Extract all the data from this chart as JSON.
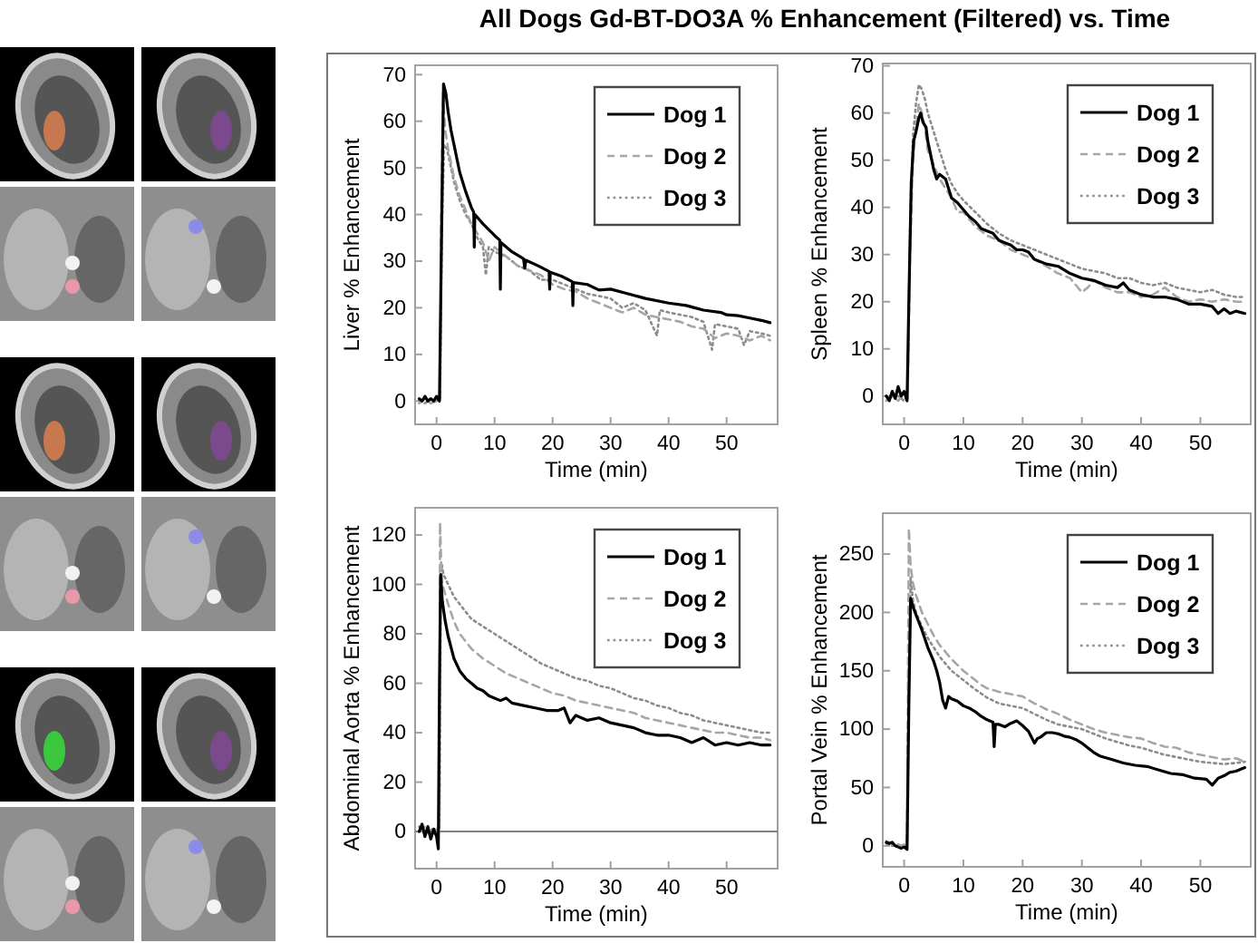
{
  "chart_data": [
    {
      "type": "line",
      "title": "All Dogs Gd-BT-DO3A % Enhancement (Filtered) vs. Time",
      "xlabel": "Time (min)",
      "ylabel": "Liver % Enhancement",
      "xlim": [
        -3.7,
        58.8
      ],
      "xticks": [
        0,
        10,
        20,
        30,
        40,
        50
      ],
      "ylim": [
        -5,
        72
      ],
      "yticks": [
        0,
        10,
        20,
        30,
        40,
        50,
        60,
        70
      ],
      "legend": "top right",
      "series": [
        {
          "name": "Dog 1",
          "color": "#000000",
          "line_style": "solid",
          "x": [
            -3,
            -2.5,
            -2,
            -1.5,
            -1,
            -0.5,
            0,
            0.5,
            0.8,
            1.2,
            1.6,
            2,
            2.5,
            3,
            4,
            5,
            6,
            6.4,
            6.5,
            6.6,
            8,
            10,
            10.9,
            11,
            11.1,
            13,
            15,
            15.2,
            15.4,
            17.5,
            19.4,
            19.5,
            19.6,
            21.5,
            23.4,
            23.5,
            23.6,
            26,
            28,
            30,
            33,
            36,
            40,
            43,
            46,
            49,
            50,
            52,
            54,
            56,
            57.5
          ],
          "values": [
            0.5,
            0,
            1,
            0,
            0.5,
            0,
            1,
            0,
            30,
            68,
            66,
            62,
            58,
            55,
            49,
            45,
            41.5,
            40.5,
            33,
            40,
            38,
            35.5,
            34.5,
            24,
            34,
            32,
            30.5,
            28.5,
            30.2,
            29,
            27.8,
            24,
            27.6,
            26.8,
            25.6,
            20.5,
            25.4,
            25,
            23.8,
            24,
            23,
            22,
            21,
            20.5,
            19.5,
            19,
            18.5,
            18.3,
            17.8,
            17.3,
            16.8
          ]
        },
        {
          "name": "Dog 2",
          "color": "#a6a6a6",
          "line_style": "dashed",
          "x": [
            -3,
            -2,
            -1,
            0,
            0.6,
            0.8,
            1.1,
            1.5,
            2,
            3,
            4,
            5,
            6,
            7,
            8,
            9,
            10,
            12,
            14,
            16,
            18,
            20,
            22,
            24,
            26,
            28,
            30,
            32,
            34,
            36,
            38,
            40,
            42,
            44,
            46,
            48,
            50,
            52,
            54,
            56,
            57.5
          ],
          "values": [
            -0.5,
            0.5,
            -0.5,
            0,
            1,
            40,
            66,
            58,
            54,
            48,
            44,
            41,
            38,
            36,
            34,
            30,
            33,
            31,
            29,
            28,
            27,
            25,
            24,
            23.5,
            22,
            21,
            20,
            19,
            20,
            18.5,
            18,
            17.5,
            17,
            16,
            15.5,
            13.5,
            14.5,
            14,
            13,
            14,
            13
          ]
        },
        {
          "name": "Dog 3",
          "color": "#8c8c8c",
          "line_style": "dotted",
          "x": [
            -3,
            -2,
            -1,
            0,
            0.6,
            0.9,
            1.3,
            1.8,
            2.5,
            3,
            4,
            5,
            6,
            7,
            8,
            8.5,
            9,
            10,
            12,
            14,
            16,
            18,
            20,
            22,
            24,
            26,
            28,
            30,
            32,
            34,
            36,
            38,
            38.5,
            40,
            42,
            44,
            46,
            47.5,
            48,
            50,
            52,
            53,
            54,
            56,
            57.5
          ],
          "values": [
            0,
            -0.5,
            0.5,
            0,
            0.5,
            35,
            55,
            54,
            50,
            47,
            43,
            40,
            38,
            35,
            33,
            27,
            33,
            32,
            31,
            29,
            28,
            26,
            26,
            25,
            24,
            23,
            22.5,
            22,
            20,
            21,
            19.5,
            14,
            19.5,
            19,
            18.5,
            18,
            17,
            11,
            16.5,
            16,
            15.5,
            12,
            15,
            14.5,
            14
          ]
        }
      ]
    },
    {
      "type": "line",
      "xlabel": "Time (min)",
      "ylabel": "Spleen % Enhancement",
      "xlim": [
        -3.6,
        58.5
      ],
      "xticks": [
        0,
        10,
        20,
        30,
        40,
        50
      ],
      "ylim": [
        -6,
        70.5
      ],
      "yticks": [
        0,
        10,
        20,
        30,
        40,
        50,
        60,
        70
      ],
      "legend": "top right",
      "series": [
        {
          "name": "Dog 1",
          "color": "#000000",
          "line_style": "solid",
          "x": [
            -3,
            -2.5,
            -2,
            -1.5,
            -1,
            -0.5,
            0,
            0.5,
            0.8,
            1.2,
            1.6,
            2,
            2.5,
            2.8,
            3.2,
            3.7,
            4,
            4.5,
            5,
            5.5,
            6,
            7,
            7.5,
            8,
            9,
            10,
            11,
            12,
            13,
            14,
            15,
            16,
            17,
            18,
            19,
            20,
            21,
            22,
            24,
            26,
            28,
            30,
            32,
            34,
            36,
            37,
            38,
            40,
            42,
            44,
            46,
            48,
            50,
            52,
            53,
            54,
            55,
            56,
            57.5
          ],
          "values": [
            0,
            -1,
            1,
            -0.5,
            2,
            0,
            1,
            -1,
            20,
            45,
            54,
            56,
            59,
            60,
            58,
            57,
            54,
            51,
            48,
            46,
            47,
            46,
            44,
            42,
            41,
            39.5,
            38,
            37,
            35.5,
            35,
            34.5,
            33,
            32.5,
            32,
            31,
            31,
            30.5,
            29,
            28,
            27.5,
            26,
            25,
            24.5,
            23.5,
            23,
            24,
            22.5,
            21.5,
            21,
            21,
            20.5,
            19.5,
            19.5,
            19,
            17.5,
            18.5,
            17.5,
            18,
            17.5
          ]
        },
        {
          "name": "Dog 2",
          "color": "#a6a6a6",
          "line_style": "dashed",
          "x": [
            -3,
            -2,
            -1,
            0,
            0.6,
            1,
            1.5,
            2,
            2.5,
            3,
            3.5,
            4,
            5,
            6,
            7,
            8,
            9,
            10,
            12,
            14,
            16,
            18,
            20,
            22,
            24,
            26,
            28,
            30,
            31,
            32,
            34,
            36,
            38,
            40,
            42,
            44,
            46,
            48,
            50,
            52,
            54,
            56,
            57.5
          ],
          "values": [
            -1,
            0,
            -1,
            0.5,
            -0.5,
            30,
            50,
            57,
            62,
            60,
            57,
            52,
            49,
            46,
            44,
            42,
            39,
            39,
            36,
            34,
            33,
            31,
            30,
            29,
            27.5,
            26,
            25,
            22,
            23,
            24.5,
            23,
            22,
            22,
            21,
            21.5,
            23,
            21,
            20,
            20.5,
            20,
            20.5,
            20,
            20
          ]
        },
        {
          "name": "Dog 3",
          "color": "#8c8c8c",
          "line_style": "dotted",
          "x": [
            -3,
            -2,
            -1,
            0,
            0.6,
            1,
            1.5,
            2,
            2.5,
            3,
            3.5,
            4,
            5,
            6,
            7,
            8,
            9,
            10,
            12,
            14,
            16,
            18,
            20,
            22,
            24,
            26,
            28,
            30,
            32,
            34,
            36,
            38,
            40,
            42,
            44,
            46,
            48,
            50,
            52,
            54,
            56,
            57.5
          ],
          "values": [
            -1,
            0,
            0,
            -1,
            0,
            35,
            55,
            62,
            66,
            65,
            63,
            60,
            56,
            52,
            48,
            45,
            43,
            41.5,
            39,
            36.5,
            34.5,
            33,
            32,
            31,
            30,
            29,
            28,
            27,
            26.5,
            26,
            25,
            25,
            24,
            23.5,
            24,
            23,
            22.5,
            22,
            22.5,
            21.5,
            21,
            21
          ]
        }
      ]
    },
    {
      "type": "line",
      "xlabel": "Time (min)",
      "ylabel": "Abdominal Aorta % Enhancement",
      "xlim": [
        -3.7,
        58.8
      ],
      "xticks": [
        0,
        10,
        20,
        30,
        40,
        50
      ],
      "ylim": [
        -15,
        131
      ],
      "yticks": [
        0,
        20,
        40,
        60,
        80,
        100,
        120
      ],
      "legend": "top right",
      "ref_lines": [
        {
          "axis": "y",
          "value": 0,
          "color": "#808080"
        }
      ],
      "series": [
        {
          "name": "Dog 1",
          "color": "#000000",
          "line_style": "solid",
          "x": [
            -3,
            -2.5,
            -2,
            -1.5,
            -1,
            -0.5,
            0,
            0.3,
            0.5,
            0.7,
            1,
            1.5,
            2,
            3,
            4,
            5,
            6,
            7,
            8,
            9,
            10,
            11,
            12,
            13,
            15,
            17,
            19,
            21,
            22,
            23,
            24,
            26,
            28,
            30,
            32,
            34,
            36,
            38,
            40,
            42,
            44,
            46,
            48,
            50,
            52,
            54,
            56,
            57.5
          ],
          "values": [
            0,
            3,
            -2,
            2,
            -3,
            1,
            -2,
            -7,
            60,
            104,
            93,
            85,
            79,
            70,
            65,
            62,
            60,
            58,
            57,
            55,
            54,
            53,
            54,
            52,
            51,
            50,
            49,
            49,
            50,
            44,
            47,
            45,
            46,
            44,
            43,
            42,
            40,
            39,
            39,
            38,
            36,
            38,
            35,
            36,
            35,
            36,
            35,
            35
          ]
        },
        {
          "name": "Dog 2",
          "color": "#a6a6a6",
          "line_style": "dashed",
          "x": [
            -3,
            -2,
            -1,
            0,
            0.5,
            0.6,
            0.8,
            1,
            2,
            3,
            4,
            5,
            6,
            8,
            10,
            12,
            14,
            16,
            18,
            20,
            22,
            24,
            26,
            28,
            30,
            32,
            34,
            36,
            38,
            40,
            42,
            44,
            46,
            48,
            50,
            52,
            54,
            56,
            57.5
          ],
          "values": [
            0,
            2,
            -2,
            1,
            0,
            125,
            108,
            100,
            92,
            85,
            80,
            77,
            74,
            70,
            67,
            64,
            62,
            60,
            58,
            56,
            55,
            53,
            52,
            51,
            50,
            49,
            48,
            46,
            45,
            44,
            43,
            42,
            41,
            40,
            40,
            39,
            38,
            38,
            37
          ]
        },
        {
          "name": "Dog 3",
          "color": "#8c8c8c",
          "line_style": "dotted",
          "x": [
            -3,
            -2,
            -1,
            0,
            0.5,
            0.7,
            0.9,
            1.2,
            2,
            3,
            4,
            5,
            6,
            8,
            10,
            12,
            14,
            16,
            18,
            20,
            22,
            24,
            26,
            28,
            30,
            32,
            34,
            36,
            38,
            40,
            42,
            44,
            46,
            48,
            50,
            52,
            54,
            56,
            57.5
          ],
          "values": [
            2,
            -1,
            1,
            0,
            0,
            90,
            108,
            104,
            100,
            95,
            92,
            89,
            86,
            83,
            80,
            77,
            74,
            71,
            68,
            66,
            64,
            62,
            61,
            59,
            58,
            56,
            54,
            53,
            51,
            50,
            48,
            47,
            45,
            44,
            43,
            42,
            41,
            40,
            40
          ]
        }
      ]
    },
    {
      "type": "line",
      "xlabel": "Time (min)",
      "ylabel": "Portal Vein % Enhancement",
      "xlim": [
        -3.6,
        58.5
      ],
      "xticks": [
        0,
        10,
        20,
        30,
        40,
        50
      ],
      "ylim": [
        -18,
        285
      ],
      "yticks": [
        0,
        50,
        100,
        150,
        200,
        250
      ],
      "legend": "top right",
      "series": [
        {
          "name": "Dog 1",
          "color": "#000000",
          "line_style": "solid",
          "x": [
            -3,
            -2.5,
            -2,
            -1.5,
            -1,
            -0.5,
            0,
            0.5,
            0.8,
            1.1,
            1.5,
            2,
            3,
            4,
            5,
            5.5,
            6,
            6.5,
            7,
            7.5,
            8,
            9,
            10,
            11,
            12,
            13,
            14,
            15,
            15.2,
            15.4,
            16,
            17,
            18,
            19,
            20,
            21,
            22,
            22.5,
            23,
            24,
            25,
            26,
            27,
            28,
            29,
            30,
            31,
            32,
            33,
            35,
            37,
            39,
            41,
            43,
            45,
            47,
            49,
            51,
            52,
            53,
            54,
            55,
            56,
            57.5
          ],
          "values": [
            3,
            2,
            3,
            0,
            -1,
            -2,
            -1,
            -3,
            120,
            212,
            205,
            198,
            185,
            170,
            158,
            150,
            140,
            125,
            118,
            128,
            126,
            124,
            120,
            118,
            115,
            111,
            108,
            106,
            85,
            104,
            104,
            102,
            105,
            107,
            103,
            98,
            88,
            92,
            93,
            97,
            97,
            96,
            94,
            93,
            91,
            88,
            84,
            80,
            77,
            74,
            71,
            69,
            68,
            65,
            62,
            61,
            58,
            57,
            52,
            58,
            60,
            63,
            64,
            67
          ]
        },
        {
          "name": "Dog 2",
          "color": "#a6a6a6",
          "line_style": "dashed",
          "x": [
            -3,
            -2,
            -1,
            0,
            0.5,
            0.8,
            1.1,
            1.5,
            2,
            3,
            4,
            5,
            6,
            7,
            8,
            10,
            12,
            13,
            14,
            16,
            18,
            20,
            22,
            24,
            26,
            28,
            30,
            32,
            34,
            36,
            38,
            40,
            42,
            44,
            46,
            48,
            50,
            52,
            54,
            56,
            57.5
          ],
          "values": [
            4,
            2,
            0,
            1,
            0,
            272,
            240,
            225,
            215,
            200,
            190,
            180,
            172,
            166,
            160,
            150,
            142,
            138,
            135,
            132,
            130,
            128,
            122,
            117,
            113,
            108,
            104,
            100,
            97,
            95,
            93,
            92,
            88,
            85,
            84,
            80,
            78,
            76,
            74,
            75,
            72
          ]
        },
        {
          "name": "Dog 3",
          "color": "#8c8c8c",
          "line_style": "dotted",
          "x": [
            -3,
            -2,
            -1,
            0,
            0.5,
            0.8,
            1.1,
            1.5,
            2,
            3,
            4,
            5,
            6,
            8,
            10,
            12,
            14,
            16,
            18,
            20,
            22,
            24,
            26,
            28,
            30,
            32,
            34,
            36,
            38,
            40,
            42,
            44,
            46,
            48,
            50,
            52,
            54,
            56,
            57.5
          ],
          "values": [
            2,
            0,
            1,
            0,
            0,
            150,
            230,
            210,
            200,
            188,
            178,
            170,
            162,
            150,
            142,
            134,
            127,
            122,
            120,
            118,
            113,
            108,
            104,
            102,
            100,
            96,
            92,
            89,
            86,
            84,
            81,
            78,
            76,
            74,
            72,
            71,
            70,
            71,
            72
          ]
        }
      ]
    }
  ]
}
